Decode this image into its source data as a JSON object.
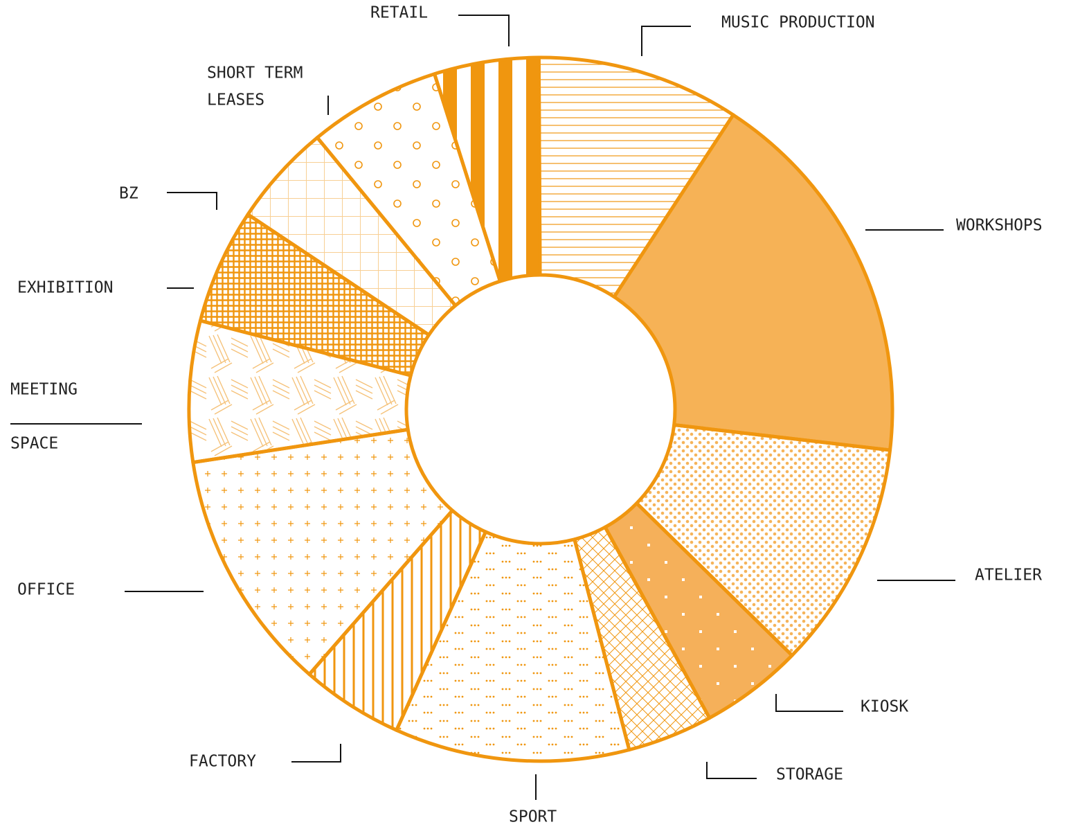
{
  "chart_data": {
    "type": "pie",
    "donut": true,
    "title": "",
    "accent_color": "#F0960F",
    "slices": [
      {
        "label": "MUSIC PRODUCTION",
        "value": 9.5,
        "pattern": "hlines"
      },
      {
        "label": "WORKSHOPS",
        "value": 18.0,
        "pattern": "solid"
      },
      {
        "label": "ATELIER",
        "value": 10.7,
        "pattern": "dots"
      },
      {
        "label": "KIOSK",
        "value": 4.8,
        "pattern": "solid-dots"
      },
      {
        "label": "STORAGE",
        "value": 4.0,
        "pattern": "crosshatch"
      },
      {
        "label": "SPORT",
        "value": 11.0,
        "pattern": "dashes"
      },
      {
        "label": "FACTORY",
        "value": 4.8,
        "pattern": "vlines"
      },
      {
        "label": "OFFICE",
        "value": 11.4,
        "pattern": "plus"
      },
      {
        "label": "MEETING SPACE",
        "value": 6.6,
        "pattern": "scribble"
      },
      {
        "label": "EXHIBITION",
        "value": 5.4,
        "pattern": "fine-grid"
      },
      {
        "label": "BZ",
        "value": 4.8,
        "pattern": "grid"
      },
      {
        "label": "SHORT TERM LEASES",
        "value": 6.2,
        "pattern": "circles"
      },
      {
        "label": "RETAIL",
        "value": 4.9,
        "pattern": "thick-vlines"
      }
    ]
  }
}
